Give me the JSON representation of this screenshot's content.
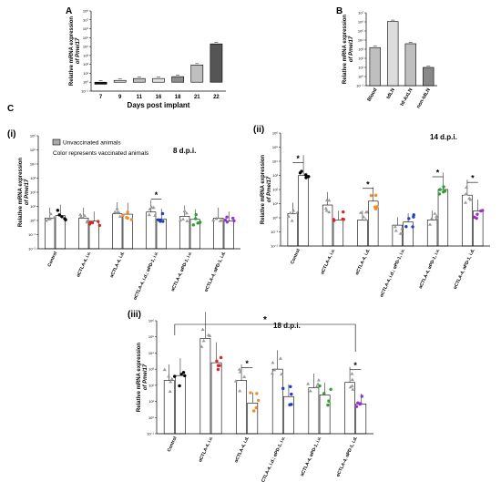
{
  "panels": {
    "a": "A",
    "b": "B",
    "c": "C",
    "c_i": "(i)",
    "c_ii": "(ii)",
    "c_iii": "(iii)"
  },
  "legend": {
    "unvaccinated": "Unvaccinated animals",
    "color_note": "Color represents vaccinated animals"
  },
  "colors": {
    "gray_fill": "#bdbdbd",
    "dark_fill": "#555555",
    "black": "#000000",
    "control_vac": "#000000",
    "ctla4_iv": "#d62728",
    "ctla4_id": "#f28c28",
    "ctla4_id_pd1_iv": "#1f3fbf",
    "ctla4_pd1_iv": "#2ca02c",
    "ctla4_pd1_id": "#9b30d0",
    "unvac_marker": "#999999"
  },
  "chart_data": [
    {
      "type": "bar",
      "title": "",
      "xlabel": "Days post implant",
      "ylabel": "Relative mRNA expression of Pmel17",
      "yscale": "log",
      "ylim_exp": [
        -1,
        8
      ],
      "ytick_labels": [
        "10⁻¹",
        "10⁰",
        "10¹",
        "10²",
        "10³",
        "10⁴",
        "10⁵",
        "10⁶",
        "10⁷",
        "10⁸"
      ],
      "categories": [
        "7",
        "9",
        "11",
        "16",
        "18",
        "21",
        "22"
      ],
      "values": [
        0.6,
        1.6,
        2.6,
        2.6,
        4.2,
        85,
        20000
      ],
      "fills": [
        "#111111",
        "#d9d9d9",
        "#bfbfbf",
        "#e0e0e0",
        "#8c8c8c",
        "#bfbfbf",
        "#555555"
      ]
    },
    {
      "type": "bar",
      "title": "",
      "ylabel": "Relative mRNA expression of Pmel17",
      "yscale": "log",
      "ylim_exp": [
        -1,
        7
      ],
      "ytick_labels": [
        "10⁻¹",
        "10⁰",
        "10¹",
        "10²",
        "10³",
        "10⁴",
        "10⁵",
        "10⁶",
        "10⁷"
      ],
      "categories": [
        "Blood",
        "tdLN",
        "td-AxLN",
        "non-tdLN"
      ],
      "values": [
        1500,
        1100000,
        4000,
        10
      ],
      "fills": [
        "#bfbfbf",
        "#dcdcdc",
        "#bfbfbf",
        "#888888"
      ]
    },
    {
      "type": "bar",
      "dpi": "8 d.p.i.",
      "ylabel": "Relative mRNA expression of Pmel17",
      "yscale": "log",
      "ylim_exp": [
        -2,
        6
      ],
      "ytick_labels": [
        "10⁻²",
        "10⁻¹",
        "10⁰",
        "10¹",
        "10²",
        "10³",
        "10⁴",
        "10⁵",
        "10⁶"
      ],
      "categories": [
        "Control",
        "αCTLA-4, i.v.",
        "αCTLA-4, i.d.",
        "αCTLA-4, i.d.; αPD-1, i.v.",
        "αCTLA-4, αPD-1, i.v.",
        "αCTLA-4, αPD-1, i.d."
      ],
      "unvaccinated": [
        1.5,
        1.5,
        3,
        4,
        2,
        1.5
      ],
      "vaccinated": [
        2.2,
        0.9,
        2.8,
        1.3,
        1.2,
        0.9
      ],
      "significance": [
        {
          "group": 3,
          "label": "*"
        }
      ]
    },
    {
      "type": "bar",
      "dpi": "14 d.p.i.",
      "ylabel": "Relative mRNA expression of Pmel17",
      "yscale": "log",
      "ylim_exp": [
        -2,
        6
      ],
      "ytick_labels": [
        "10⁻²",
        "10⁻¹",
        "10⁰",
        "10¹",
        "10²",
        "10³",
        "10⁴",
        "10⁵",
        "10⁶"
      ],
      "categories": [
        "Control",
        "αCTLA-4, i.v.",
        "αCTLA-4, i.d.",
        "αCTLA-4, i.d.; αPD-1, i.v.",
        "αCTLA-4, αPD-1, i.v.",
        "αCTLA-4, αPD-1, i.d."
      ],
      "unvaccinated": [
        2,
        8,
        0.7,
        0.3,
        0.7,
        40
      ],
      "vaccinated": [
        1000,
        0.7,
        15,
        0.5,
        100,
        3
      ],
      "significance": [
        {
          "group": 0,
          "label": "*"
        },
        {
          "group": 2,
          "label": "*"
        },
        {
          "group": 4,
          "label": "*"
        },
        {
          "group": 5,
          "label": "*"
        }
      ]
    },
    {
      "type": "bar",
      "dpi": "18 d.p.i.",
      "ylabel": "Relative mRNA expression of Pmel17",
      "yscale": "log",
      "ylim_exp": [
        -1,
        6
      ],
      "ytick_labels": [
        "10⁻¹",
        "10⁰",
        "10¹",
        "10²",
        "10³",
        "10⁴",
        "10⁵",
        "10⁶"
      ],
      "categories": [
        "Control",
        "αCTLA-4, i.v.",
        "αCTLA-4, i.d.",
        "αCTLA-4, i.d.; αPD-1, i.v.",
        "αCTLA-4, αPD-1, i.v.",
        "αCTLA-4, αPD-1, i.d."
      ],
      "unvaccinated": [
        200,
        80000,
        200,
        1000,
        70,
        150
      ],
      "vaccinated": [
        400,
        2500,
        8,
        20,
        25,
        7
      ],
      "significance": [
        {
          "group": 0,
          "label": "*",
          "to": 5
        },
        {
          "group": 2,
          "label": "*"
        },
        {
          "group": 5,
          "label": "*"
        }
      ]
    }
  ]
}
